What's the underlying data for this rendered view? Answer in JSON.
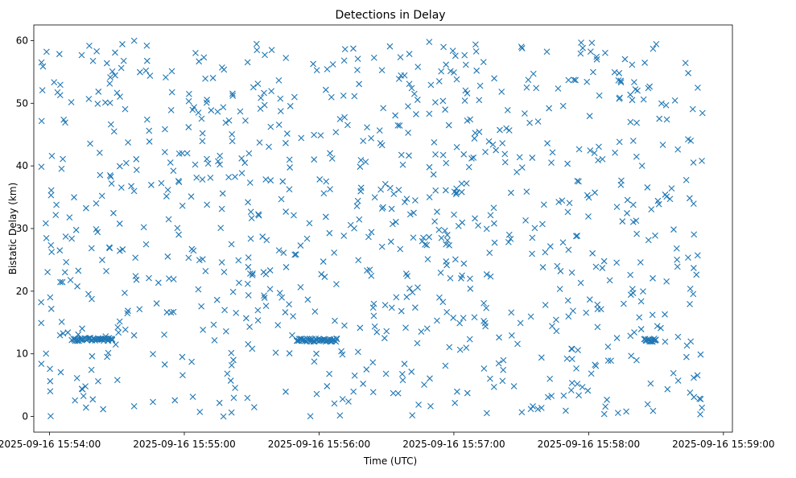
{
  "chart_data": {
    "type": "scatter",
    "title": "Detections in Delay",
    "xlabel": "Time (UTC)",
    "ylabel": "Bistatic Delay (km)",
    "marker": "x",
    "color": "#1f77b4",
    "grid": false,
    "legend": "none",
    "x_is_time": true,
    "xlim": [
      "2025-09-16 15:53:53",
      "2025-09-16 15:59:04"
    ],
    "ylim": [
      -2.5,
      62.5
    ],
    "x_ticks": [
      "2025-09-16 15:54:00",
      "2025-09-16 15:55:00",
      "2025-09-16 15:56:00",
      "2025-09-16 15:57:00",
      "2025-09-16 15:58:00",
      "2025-09-16 15:59:00"
    ],
    "y_ticks": [
      "0",
      "10",
      "20",
      "30",
      "40",
      "50",
      "60"
    ],
    "time_range": [
      "2025-09-16 15:53:56",
      "2025-09-16 15:58:51"
    ],
    "delay_range": [
      0,
      60
    ],
    "estimated_point_count": 900,
    "clusters": [
      {
        "time_start": "2025-09-16 15:54:10",
        "time_end": "2025-09-16 15:54:28",
        "delay": 12.3
      },
      {
        "time_start": "2025-09-16 15:55:50",
        "time_end": "2025-09-16 15:56:08",
        "delay": 12.2
      },
      {
        "time_start": "2025-09-16 15:58:25",
        "time_end": "2025-09-16 15:58:30",
        "delay": 12.2
      }
    ]
  }
}
